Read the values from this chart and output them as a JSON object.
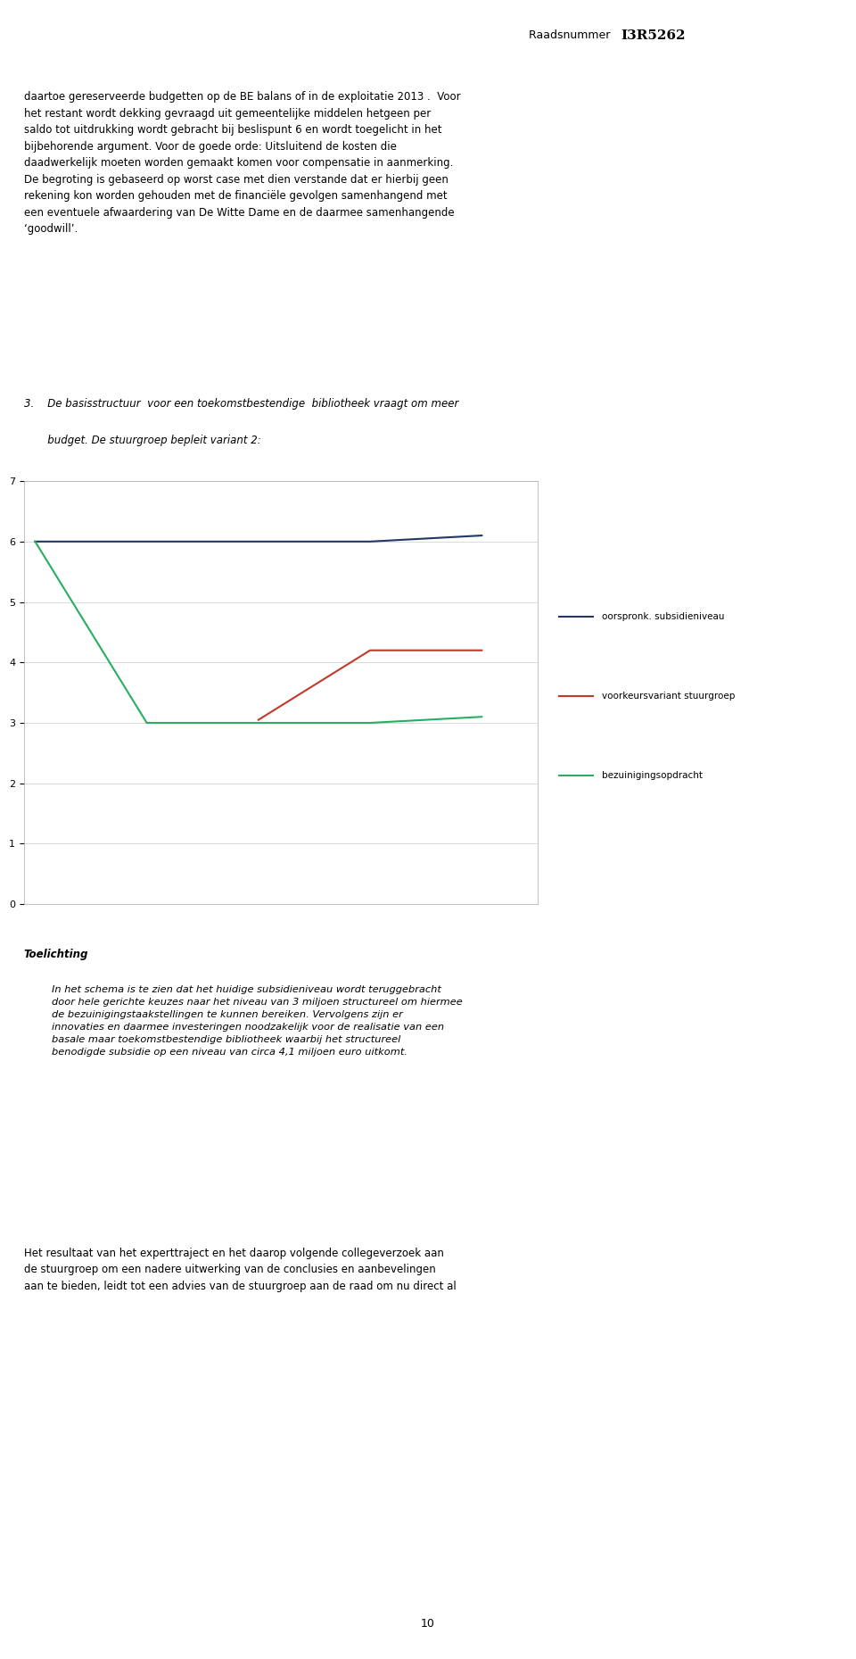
{
  "page_number": "10",
  "bg_color": "#ffffff",
  "header_label": "Raadsnummer ",
  "header_bold": "I3R5262",
  "body1": "daartoe gereserveerde budgetten op de BE balans of in de exploitatie 2013 .  Voor\nhet restant wordt dekking gevraagd uit gemeentelijke middelen hetgeen per\nsaldo tot uitdrukking wordt gebracht bij beslispunt 6 en wordt toegelicht in het\nbijbehorende argument. Voor de goede orde: Uitsluitend de kosten die\ndaadwerkelijk moeten worden gemaakt komen voor compensatie in aanmerking.\nDe begroting is gebaseerd op worst case met dien verstande dat er hierbij geen\nrekening kon worden gehouden met de financiële gevolgen samenhangend met\neen eventuele afwaardering van De Witte Dame en de daarmee samenhangende\n‘goodwill’.",
  "sec3_line1": "3.    De basisstructuur  voor een toekomstbestendige  bibliotheek vraagt om meer",
  "sec3_line2": "       budget. De stuurgroep bepleit variant 2:",
  "toelichting_header": "Toelichting",
  "toelichting_body": "In het schema is te zien dat het huidige subsidieniveau wordt teruggebracht\ndoor hele gerichte keuzes naar het niveau van 3 miljoen structureel om hiermee\nde bezuinigingstaakstellingen te kunnen bereiken. Vervolgens zijn er\ninnovaties en daarmee investeringen noodzakelijk voor de realisatie van een\nbasale maar toekomstbestendige bibliotheek waarbij het structureel\nbenodigde subsidie op een niveau van circa 4,1 miljoen euro uitkomt.",
  "bottom_text": "Het resultaat van het experttraject en het daarop volgende collegeverzoek aan\nde stuurgroep om een nadere uitwerking van de conclusies en aanbevelingen\naan te bieden, leidt tot een advies van de stuurgroep aan de raad om nu direct al",
  "chart": {
    "x_positions": [
      0,
      1,
      2,
      3,
      4
    ],
    "blue_line": [
      6.0,
      6.0,
      6.0,
      6.0,
      6.1
    ],
    "red_line": [
      null,
      null,
      3.05,
      4.2,
      4.2
    ],
    "green_line": [
      6.0,
      3.0,
      3.0,
      3.0,
      3.1
    ],
    "blue_color": "#1f3864",
    "red_color": "#c0392b",
    "green_color": "#27ae60",
    "ylim": [
      0,
      7
    ],
    "yticks": [
      0,
      1,
      2,
      3,
      4,
      5,
      6,
      7
    ],
    "legend_blue": "oorspronk. subsidieniveau",
    "legend_red": "voorkeursvariant stuurgroep",
    "legend_green": "bezuinigingsopdracht",
    "line_width": 1.5
  }
}
